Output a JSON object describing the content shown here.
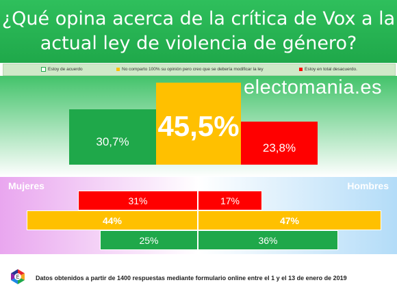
{
  "title_line1": "¿Qué opina acerca de la crítica de Vox a la",
  "title_line2": "actual ley de violencia de género?",
  "legend": [
    {
      "label": "Estoy de acuerdo",
      "color": "#1fa84a"
    },
    {
      "label": "No comparto 100% su opinión pero creo que se debería modificar la ley",
      "color": "#ffc000"
    },
    {
      "label": "Estoy en total desacuerdo.",
      "color": "#ff0000"
    }
  ],
  "watermark": "electomania.es",
  "colors": {
    "agree": "#1fa84a",
    "modify": "#ffc000",
    "disagree": "#ff0000"
  },
  "chart_data": [
    {
      "type": "bar",
      "categories": [
        "Estoy de acuerdo",
        "No comparto 100% su opinión pero creo que se debería modificar la ley",
        "Estoy en total desacuerdo."
      ],
      "values": [
        30.7,
        45.5,
        23.8
      ],
      "labels": [
        "30,7%",
        "45,5%",
        "23,8%"
      ]
    },
    {
      "type": "bar",
      "categories": [
        "Estoy en total desacuerdo.",
        "No comparto 100% su opinión pero creo que se debería modificar la ley",
        "Estoy de acuerdo"
      ],
      "series": [
        {
          "name": "Mujeres",
          "values": [
            31,
            44,
            25
          ],
          "labels": [
            "31%",
            "44%",
            "25%"
          ]
        },
        {
          "name": "Hombres",
          "values": [
            17,
            47,
            36
          ],
          "labels": [
            "17%",
            "47%",
            "36%"
          ]
        }
      ]
    }
  ],
  "side_left": "Mujeres",
  "side_right": "Hombres",
  "footer": "Datos obtenidos a partir de 1400 respuestas mediante formulario online entre el 1 y el 13 de enero de 2019"
}
